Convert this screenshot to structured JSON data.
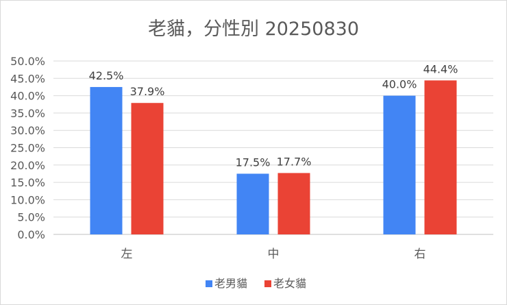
{
  "chart_data": {
    "type": "bar",
    "title": "老貓，分性別 20250830",
    "categories": [
      "左",
      "中",
      "右"
    ],
    "series": [
      {
        "name": "老男貓",
        "values": [
          42.5,
          17.5,
          40.0
        ],
        "labels": [
          "42.5%",
          "17.5%",
          "40.0%"
        ],
        "color": "#4285f4"
      },
      {
        "name": "老女貓",
        "values": [
          37.9,
          17.7,
          44.4
        ],
        "labels": [
          "37.9%",
          "17.7%",
          "44.4%"
        ],
        "color": "#ea4335"
      }
    ],
    "ylim": [
      0,
      50
    ],
    "yticks": [
      "0.0%",
      "5.0%",
      "10.0%",
      "15.0%",
      "20.0%",
      "25.0%",
      "30.0%",
      "35.0%",
      "40.0%",
      "45.0%",
      "50.0%"
    ],
    "grid": true,
    "legend_position": "bottom"
  }
}
